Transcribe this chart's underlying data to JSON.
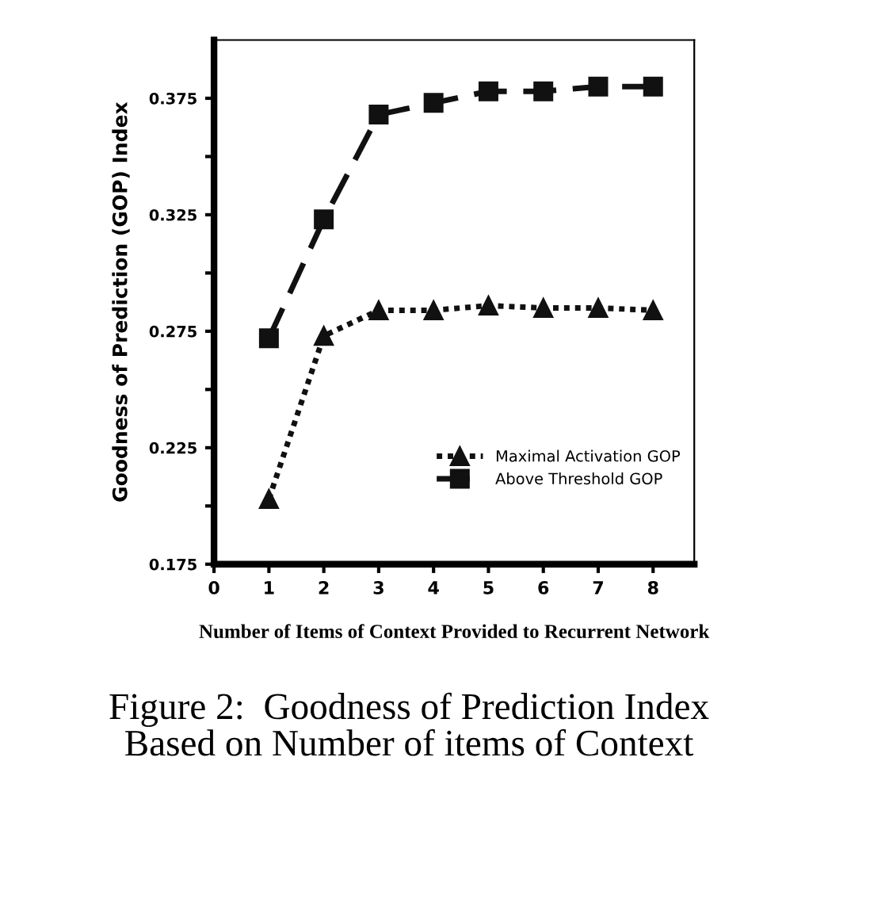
{
  "chart_data": {
    "type": "line",
    "xlabel": "Number of Items of Context Provided to Recurrent Network",
    "ylabel": "Goodness of Prediction (GOP) Index",
    "annotations": [
      "Figure 2:  Goodness of Prediction Index\nBased on Number of items of Context"
    ],
    "x": [
      1,
      2,
      3,
      4,
      5,
      6,
      7,
      8
    ],
    "series": [
      {
        "name": "Maximal Activation GOP",
        "color": "#111111",
        "marker": "triangle",
        "line_style": "dotted",
        "values": [
          0.203,
          0.273,
          0.284,
          0.284,
          0.286,
          0.285,
          0.285,
          0.284
        ]
      },
      {
        "name": "Above Threshold GOP",
        "color": "#111111",
        "marker": "square",
        "line_style": "dashed",
        "values": [
          0.272,
          0.323,
          0.368,
          0.373,
          0.378,
          0.378,
          0.38,
          0.38
        ]
      }
    ],
    "xlim": [
      0,
      8.75
    ],
    "xticks": [
      0,
      1,
      2,
      3,
      4,
      5,
      6,
      7,
      8
    ],
    "ylim": [
      0.175,
      0.4
    ],
    "yticks": [
      0.175,
      {
        "value": 0.2,
        "label": null
      },
      0.225,
      {
        "value": 0.25,
        "label": null
      },
      0.275,
      {
        "value": 0.3,
        "label": null
      },
      0.325,
      {
        "value": 0.35,
        "label": null
      },
      0.375
    ],
    "legend": "bottom right",
    "grid": false
  }
}
